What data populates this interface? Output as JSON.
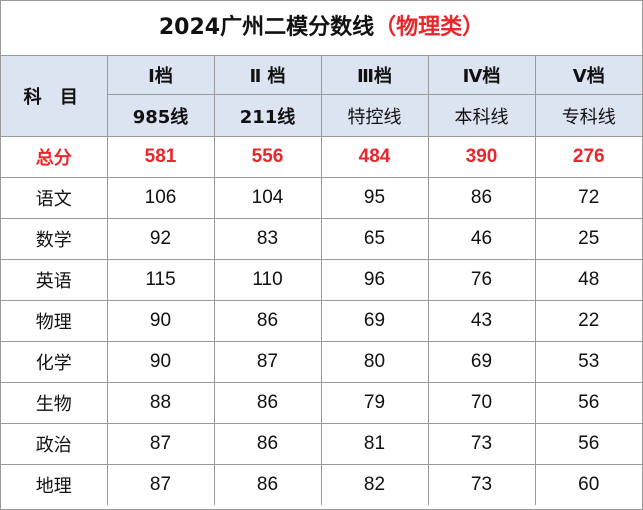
{
  "title": {
    "main": "2024广州二模分数线",
    "highlight": "（物理类）"
  },
  "header": {
    "subject_label": "科 目",
    "tiers": [
      {
        "name": "I档",
        "line": "985线"
      },
      {
        "name": "Ⅱ 档",
        "line": "211线"
      },
      {
        "name": "Ⅲ档",
        "line": "特控线"
      },
      {
        "name": "Ⅳ档",
        "line": "本科线"
      },
      {
        "name": "Ⅴ档",
        "line": "专科线"
      }
    ]
  },
  "rows": [
    {
      "subject": "总分",
      "scores": [
        "581",
        "556",
        "484",
        "390",
        "276"
      ]
    },
    {
      "subject": "语文",
      "scores": [
        "106",
        "104",
        "95",
        "86",
        "72"
      ]
    },
    {
      "subject": "数学",
      "scores": [
        "92",
        "83",
        "65",
        "46",
        "25"
      ]
    },
    {
      "subject": "英语",
      "scores": [
        "115",
        "110",
        "96",
        "76",
        "48"
      ]
    },
    {
      "subject": "物理",
      "scores": [
        "90",
        "86",
        "69",
        "43",
        "22"
      ]
    },
    {
      "subject": "化学",
      "scores": [
        "90",
        "87",
        "80",
        "69",
        "53"
      ]
    },
    {
      "subject": "生物",
      "scores": [
        "88",
        "86",
        "79",
        "70",
        "56"
      ]
    },
    {
      "subject": "政治",
      "scores": [
        "87",
        "86",
        "81",
        "73",
        "56"
      ]
    },
    {
      "subject": "地理",
      "scores": [
        "87",
        "86",
        "82",
        "73",
        "60"
      ]
    }
  ],
  "colors": {
    "accent_red": "#e8262b",
    "header_bg": "#dce3f1"
  }
}
